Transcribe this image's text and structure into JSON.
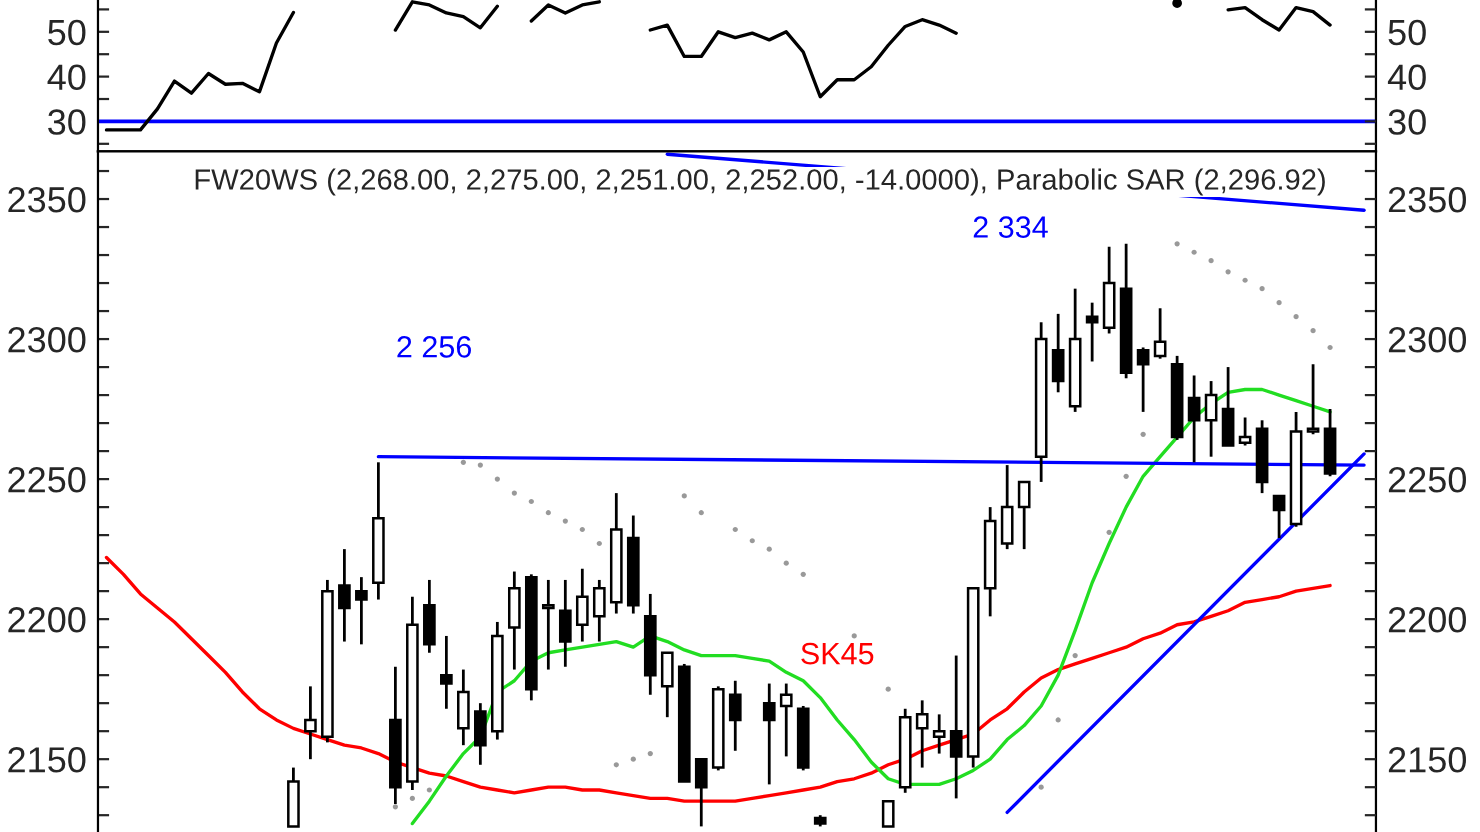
{
  "chart_data": [
    {
      "type": "line",
      "categories": [
        null,
        null,
        null,
        null,
        null,
        null,
        null,
        null,
        null,
        null,
        null,
        null,
        null,
        null,
        null,
        null,
        null,
        null,
        null,
        null,
        null,
        null,
        null,
        null,
        null,
        null,
        null,
        null,
        null,
        null,
        null,
        null,
        null,
        null,
        null,
        null,
        null,
        null,
        null,
        null,
        null,
        null,
        null,
        null,
        null,
        null,
        null,
        null,
        null,
        null,
        null,
        null,
        null,
        null,
        null,
        null,
        null,
        null,
        null,
        null,
        null,
        null,
        null,
        null,
        null,
        null,
        null,
        null,
        null,
        null,
        null,
        null,
        null,
        null,
        null
      ],
      "series": [
        {
          "color": "#000000",
          "values": [
            28.1,
            28.1,
            28.1,
            32.8,
            39.0,
            36.3,
            40.7,
            38.3,
            38.5,
            36.6,
            47.5,
            54.3,
            null,
            null,
            null,
            null,
            null,
            50.4,
            56.7,
            56.0,
            54.2,
            53.4,
            50.9,
            55.7,
            null,
            52.4,
            56.0,
            54.2,
            56.0,
            56.7,
            null,
            null,
            50.4,
            51.5,
            44.5,
            44.5,
            50.0,
            48.7,
            49.7,
            48.2,
            50.0,
            45.5,
            35.5,
            39.3,
            39.3,
            42.2,
            47.0,
            51.2,
            52.7,
            51.5,
            49.7,
            null,
            null,
            null,
            null,
            null,
            null,
            null,
            null,
            null,
            null,
            null,
            null,
            56.4,
            null,
            null,
            54.9,
            55.4,
            52.7,
            50.4,
            55.4,
            54.5,
            51.5,
            null,
            null
          ]
        }
      ],
      "ylim": [
        23.3,
        57.1
      ],
      "yticks": [
        {
          "value": 25,
          "label": null
        },
        30,
        {
          "value": 35,
          "label": null
        },
        40,
        {
          "value": 45,
          "label": null
        },
        50,
        {
          "value": 55,
          "label": null
        }
      ],
      "y2lim": [
        23.3,
        57.1
      ],
      "y2ticks": [
        {
          "value": 25,
          "label": null
        },
        30,
        {
          "value": 35,
          "label": null
        },
        40,
        {
          "value": 45,
          "label": null
        },
        50,
        {
          "value": 55,
          "label": null
        }
      ],
      "ref_lines": [
        {
          "axis": "y",
          "value": 30,
          "color": "#0000ff"
        }
      ],
      "tick_labels": "y"
    },
    {
      "type": "candlestick",
      "title": "FW20WS (2,268.00, 2,275.00, 2,251.00, 2,252.00, -14.0000), Parabolic SAR (2,296.92)",
      "categories": [
        null,
        null,
        null,
        null,
        null,
        null,
        null,
        null,
        null,
        null,
        null,
        null,
        null,
        null,
        null,
        null,
        null,
        null,
        null,
        null,
        null,
        null,
        null,
        null,
        null,
        null,
        null,
        null,
        null,
        null,
        null,
        null,
        null,
        null,
        null,
        null,
        null,
        null,
        null,
        null,
        null,
        null,
        null,
        null,
        null,
        null,
        null,
        null,
        null,
        null,
        null,
        null,
        null,
        null,
        null,
        null,
        null,
        null,
        null,
        null,
        null,
        null,
        null,
        null,
        null,
        null,
        null,
        null,
        null,
        null,
        null,
        null,
        null,
        null,
        null
      ],
      "ohlc": [
        null,
        null,
        null,
        null,
        null,
        null,
        null,
        null,
        null,
        null,
        null,
        [
          2126,
          2147,
          2126,
          2142
        ],
        [
          2160,
          2176,
          2150,
          2164
        ],
        [
          2158,
          2214,
          2156,
          2210
        ],
        [
          2212,
          2225,
          2192,
          2204
        ],
        [
          2210,
          2215,
          2191,
          2207
        ],
        [
          2213,
          2256,
          2207,
          2236
        ],
        [
          2164,
          2183,
          2134,
          2140
        ],
        [
          2142,
          2208,
          2139,
          2198
        ],
        [
          2205,
          2214,
          2188,
          2191
        ],
        [
          2180,
          2194,
          2168,
          2177
        ],
        [
          2161,
          2182,
          2155,
          2174
        ],
        [
          2167,
          2170,
          2148,
          2155
        ],
        [
          2160,
          2199,
          2157,
          2194
        ],
        [
          2197,
          2217,
          2182,
          2211
        ],
        [
          2215,
          2216,
          2171,
          2175
        ],
        [
          2204,
          2214,
          2182,
          2205
        ],
        [
          2203,
          2214,
          2183,
          2192
        ],
        [
          2198,
          2218,
          2192,
          2208
        ],
        [
          2201,
          2214,
          2192,
          2211
        ],
        [
          2206,
          2245,
          2202,
          2232
        ],
        [
          2229,
          2237,
          2202,
          2205
        ],
        [
          2201,
          2209,
          2173,
          2180
        ],
        [
          2176,
          2188,
          2165,
          2188
        ],
        [
          2183,
          2184,
          2142,
          2142
        ],
        [
          2150,
          2150,
          2126,
          2140
        ],
        [
          2147,
          2176,
          2146,
          2175
        ],
        [
          2173,
          2178,
          2153,
          2164
        ],
        null,
        [
          2170,
          2177,
          2141,
          2164
        ],
        [
          2169,
          2177,
          2151,
          2173
        ],
        [
          2168,
          2169,
          2146,
          2147
        ],
        [
          2129,
          2130,
          2126,
          2127
        ],
        null,
        null,
        null,
        [
          2126,
          2135,
          2126,
          2135
        ],
        [
          2140,
          2168,
          2138,
          2165
        ],
        [
          2161,
          2171,
          2147,
          2166
        ],
        [
          2158,
          2166,
          2152,
          2160
        ],
        [
          2160,
          2187,
          2136,
          2151
        ],
        [
          2151,
          2211,
          2147,
          2211
        ],
        [
          2211,
          2240,
          2201,
          2235
        ],
        [
          2227,
          2255,
          2225,
          2240
        ],
        [
          2240,
          2249,
          2225,
          2249
        ],
        [
          2258,
          2306,
          2249,
          2300
        ],
        [
          2296,
          2309,
          2281,
          2285
        ],
        [
          2276,
          2318,
          2274,
          2300
        ],
        [
          2308,
          2313,
          2292,
          2306
        ],
        [
          2304,
          2333,
          2302,
          2320
        ],
        [
          2318,
          2334,
          2286,
          2288
        ],
        [
          2296,
          2297,
          2274,
          2291
        ],
        [
          2294,
          2311,
          2293,
          2299
        ],
        [
          2291,
          2294,
          2264,
          2265
        ],
        [
          2279,
          2287,
          2256,
          2271
        ],
        [
          2271,
          2285,
          2258,
          2280
        ],
        [
          2275,
          2290,
          2262,
          2262
        ],
        [
          2263,
          2272,
          2262,
          2265
        ],
        [
          2268,
          2271,
          2245,
          2249
        ],
        [
          2244,
          2244,
          2229,
          2239
        ],
        [
          2234,
          2274,
          2233,
          2267
        ],
        [
          2267,
          2291,
          2266,
          2268
        ],
        [
          2268,
          2275,
          2251,
          2252
        ],
        null,
        null
      ],
      "series": [
        {
          "type": "line",
          "name": "SK45",
          "color": "#ff0000",
          "values": [
            2222,
            2216,
            2209,
            2204,
            2199,
            2193,
            2187,
            2181,
            2174,
            2168,
            2164,
            2161,
            2159,
            2157,
            2155,
            2154,
            2152,
            2149,
            2147,
            2145,
            2144,
            2142,
            2140,
            2139,
            2138,
            2139,
            2140,
            2140,
            2139,
            2139,
            2138,
            2137,
            2136,
            2136,
            2135,
            2135,
            2135,
            2135,
            2136,
            2137,
            2138,
            2139,
            2140,
            2142,
            2143,
            2145,
            2148,
            2150,
            2153,
            2155,
            2157,
            2159,
            2164,
            2168,
            2174,
            2179,
            2182,
            2184,
            2186,
            2188,
            2190,
            2193,
            2195,
            2198,
            2199,
            2201,
            2203,
            2206,
            2207,
            2208,
            2210,
            2211,
            2212,
            null,
            null
          ]
        },
        {
          "type": "line",
          "color": "#22dd22",
          "values": [
            null,
            null,
            null,
            null,
            null,
            null,
            null,
            null,
            null,
            null,
            null,
            null,
            null,
            null,
            null,
            null,
            null,
            null,
            2127,
            2135,
            2144,
            2152,
            2158,
            2174,
            2178,
            2185,
            2188,
            2189,
            2190,
            2191,
            2192,
            2190,
            2194,
            2192,
            2189,
            2187,
            2187,
            2187,
            2186,
            2185,
            2181,
            2178,
            2172,
            2164,
            2157,
            2149,
            2143,
            2141,
            2141,
            2141,
            2143,
            2146,
            2150,
            2157,
            2162,
            2169,
            2180,
            2196,
            2213,
            2227,
            2240,
            2251,
            2258,
            2265,
            2272,
            2277,
            2281,
            2282,
            2282,
            2280,
            2278,
            2276,
            2274,
            null,
            null
          ]
        },
        {
          "type": "line",
          "color": "#0000ff",
          "values": [
            null,
            null,
            null,
            null,
            null,
            null,
            null,
            null,
            null,
            null,
            null,
            null,
            null,
            null,
            null,
            null,
            2258,
            null,
            null,
            null,
            null,
            null,
            null,
            null,
            null,
            null,
            null,
            null,
            null,
            null,
            null,
            null,
            null,
            null,
            null,
            null,
            null,
            null,
            null,
            null,
            null,
            null,
            null,
            null,
            null,
            null,
            null,
            null,
            null,
            null,
            null,
            null,
            null,
            null,
            null,
            null,
            null,
            null,
            null,
            null,
            null,
            null,
            null,
            null,
            null,
            null,
            null,
            null,
            null,
            null,
            null,
            null,
            null,
            null,
            2255
          ]
        },
        {
          "type": "line",
          "color": "#0000ff",
          "values": [
            null,
            null,
            null,
            null,
            null,
            null,
            null,
            null,
            null,
            null,
            null,
            null,
            null,
            null,
            null,
            null,
            null,
            null,
            null,
            null,
            null,
            null,
            null,
            null,
            null,
            null,
            null,
            null,
            null,
            null,
            null,
            null,
            null,
            2366,
            null,
            null,
            null,
            null,
            null,
            null,
            null,
            null,
            null,
            null,
            null,
            null,
            null,
            null,
            null,
            null,
            null,
            null,
            null,
            null,
            null,
            null,
            null,
            null,
            null,
            null,
            null,
            null,
            null,
            null,
            null,
            null,
            null,
            null,
            null,
            null,
            null,
            null,
            null,
            null,
            2346
          ]
        },
        {
          "type": "line",
          "color": "#0000ff",
          "values": [
            null,
            null,
            null,
            null,
            null,
            null,
            null,
            null,
            null,
            null,
            null,
            null,
            null,
            null,
            null,
            null,
            null,
            null,
            null,
            null,
            null,
            null,
            null,
            null,
            null,
            null,
            null,
            null,
            null,
            null,
            null,
            null,
            null,
            null,
            null,
            null,
            null,
            null,
            null,
            null,
            null,
            null,
            null,
            null,
            null,
            null,
            null,
            null,
            null,
            null,
            null,
            null,
            null,
            2131,
            null,
            null,
            null,
            null,
            null,
            null,
            null,
            null,
            null,
            null,
            null,
            null,
            null,
            null,
            null,
            null,
            null,
            null,
            null,
            null,
            2259
          ]
        },
        {
          "type": "scatter",
          "color": "#999999",
          "marker": "circle",
          "values": [
            null,
            null,
            null,
            null,
            null,
            null,
            null,
            null,
            null,
            null,
            null,
            null,
            null,
            null,
            null,
            null,
            null,
            2133,
            2136,
            2139,
            null,
            2256,
            2255,
            2250,
            2245,
            2242,
            2238,
            2235,
            2232,
            2227,
            2148,
            2150,
            2152,
            null,
            2244,
            2238,
            null,
            2232,
            2228,
            2225,
            2220,
            2216,
            null,
            null,
            2194,
            null,
            2175,
            null,
            null,
            null,
            null,
            null,
            null,
            null,
            null,
            2140,
            2164,
            2187,
            null,
            2231,
            2251,
            2266,
            null,
            2334,
            2331,
            2328,
            2324,
            2321,
            2318,
            2313,
            2308,
            2303,
            2297,
            null,
            null
          ]
        }
      ],
      "ylim": [
        2124,
        2367
      ],
      "yticks": [
        {
          "value": 2130,
          "label": null
        },
        {
          "value": 2140,
          "label": null
        },
        2150,
        {
          "value": 2160,
          "label": null
        },
        {
          "value": 2170,
          "label": null
        },
        {
          "value": 2180,
          "label": null
        },
        {
          "value": 2190,
          "label": null
        },
        2200,
        {
          "value": 2210,
          "label": null
        },
        {
          "value": 2220,
          "label": null
        },
        {
          "value": 2230,
          "label": null
        },
        {
          "value": 2240,
          "label": null
        },
        2250,
        {
          "value": 2260,
          "label": null
        },
        {
          "value": 2270,
          "label": null
        },
        {
          "value": 2280,
          "label": null
        },
        {
          "value": 2290,
          "label": null
        },
        2300,
        {
          "value": 2310,
          "label": null
        },
        {
          "value": 2320,
          "label": null
        },
        {
          "value": 2330,
          "label": null
        },
        {
          "value": 2340,
          "label": null
        },
        2350,
        {
          "value": 2360,
          "label": null
        }
      ],
      "y2lim": [
        2124,
        2367
      ],
      "y2ticks": [
        {
          "value": 2130,
          "label": null
        },
        {
          "value": 2140,
          "label": null
        },
        2150,
        {
          "value": 2160,
          "label": null
        },
        {
          "value": 2170,
          "label": null
        },
        {
          "value": 2180,
          "label": null
        },
        {
          "value": 2190,
          "label": null
        },
        2200,
        {
          "value": 2210,
          "label": null
        },
        {
          "value": 2220,
          "label": null
        },
        {
          "value": 2230,
          "label": null
        },
        {
          "value": 2240,
          "label": null
        },
        2250,
        {
          "value": 2260,
          "label": null
        },
        {
          "value": 2270,
          "label": null
        },
        {
          "value": 2280,
          "label": null
        },
        {
          "value": 2290,
          "label": null
        },
        2300,
        {
          "value": 2310,
          "label": null
        },
        {
          "value": 2320,
          "label": null
        },
        {
          "value": 2330,
          "label": null
        },
        {
          "value": 2340,
          "label": null
        },
        2350,
        {
          "value": 2360,
          "label": null
        }
      ],
      "annotations": [
        "2 256",
        "2 334"
      ],
      "tick_labels": "y"
    }
  ]
}
